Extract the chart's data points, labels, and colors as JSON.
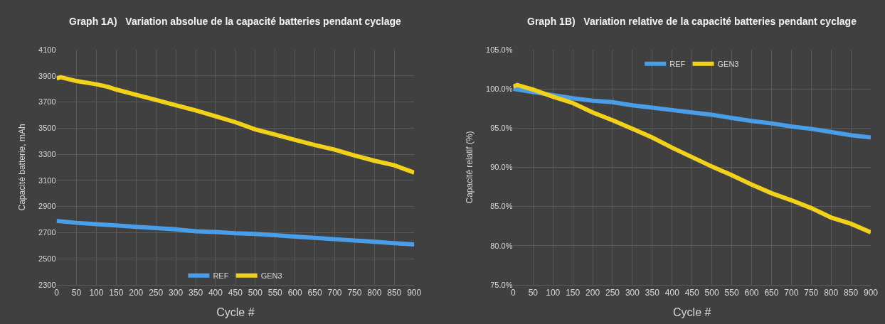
{
  "chart_data": [
    {
      "type": "line",
      "title": "Graph 1A)   Variation absolue de la capacité batteries pendant cyclage",
      "xlabel": "Cycle #",
      "ylabel": "Capacité batterie, mAh",
      "xlim": [
        0,
        900
      ],
      "xticks": [
        0,
        50,
        100,
        150,
        200,
        250,
        300,
        350,
        400,
        450,
        500,
        550,
        600,
        650,
        700,
        750,
        800,
        850,
        900
      ],
      "ylim": [
        2300,
        4100
      ],
      "yticks": [
        2300,
        2500,
        2700,
        2900,
        3100,
        3300,
        3500,
        3700,
        3900,
        4100
      ],
      "grid": true,
      "legend": "bottom",
      "line_style": "solid",
      "series": [
        {
          "name": "REF",
          "color": "#4a9ee8",
          "x": [
            0,
            50,
            100,
            150,
            200,
            250,
            300,
            350,
            400,
            450,
            500,
            550,
            600,
            650,
            700,
            750,
            800,
            850,
            900
          ],
          "values": [
            2790,
            2775,
            2765,
            2755,
            2745,
            2735,
            2725,
            2710,
            2705,
            2695,
            2690,
            2680,
            2670,
            2660,
            2650,
            2640,
            2630,
            2620,
            2610
          ]
        },
        {
          "name": "GEN3",
          "color": "#f2d11b",
          "x": [
            0,
            10,
            50,
            100,
            130,
            150,
            200,
            250,
            300,
            350,
            400,
            450,
            500,
            550,
            600,
            650,
            700,
            750,
            800,
            850,
            900
          ],
          "values": [
            3880,
            3890,
            3860,
            3835,
            3815,
            3795,
            3755,
            3715,
            3675,
            3635,
            3590,
            3545,
            3490,
            3450,
            3410,
            3370,
            3335,
            3290,
            3250,
            3215,
            3160
          ]
        }
      ]
    },
    {
      "type": "line",
      "title": "Graph 1B)   Variation relative de la capacité batteries pendant cyclage",
      "xlabel": "Cycle #",
      "ylabel": "Capacité relatif (%)",
      "xlim": [
        0,
        900
      ],
      "xticks": [
        0,
        50,
        100,
        150,
        200,
        250,
        300,
        350,
        400,
        450,
        500,
        550,
        600,
        650,
        700,
        750,
        800,
        850,
        900
      ],
      "ylim": [
        75,
        105
      ],
      "yticks": [
        {
          "value": 75,
          "label": "75.0%"
        },
        {
          "value": 80,
          "label": "80.0%"
        },
        {
          "value": 85,
          "label": "85.0%"
        },
        {
          "value": 90,
          "label": "90.0%"
        },
        {
          "value": 95,
          "label": "95.0%"
        },
        {
          "value": 100,
          "label": "100.0%"
        },
        {
          "value": 105,
          "label": "105.0%"
        }
      ],
      "grid": true,
      "legend": "top",
      "line_style": "solid",
      "series": [
        {
          "name": "REF",
          "color": "#4a9ee8",
          "x": [
            0,
            50,
            100,
            150,
            200,
            250,
            300,
            350,
            400,
            450,
            500,
            550,
            600,
            650,
            700,
            750,
            800,
            850,
            900
          ],
          "values": [
            100.0,
            99.6,
            99.2,
            98.8,
            98.5,
            98.3,
            97.9,
            97.6,
            97.3,
            97.0,
            96.7,
            96.3,
            95.9,
            95.6,
            95.2,
            94.9,
            94.5,
            94.1,
            93.8
          ]
        },
        {
          "name": "GEN3",
          "color": "#f2d11b",
          "x": [
            0,
            10,
            50,
            100,
            150,
            200,
            250,
            300,
            350,
            400,
            450,
            500,
            550,
            600,
            650,
            700,
            750,
            800,
            850,
            900
          ],
          "values": [
            100.3,
            100.5,
            99.9,
            99.0,
            98.2,
            97.0,
            96.0,
            94.9,
            93.8,
            92.5,
            91.3,
            90.1,
            89.0,
            87.8,
            86.7,
            85.8,
            84.8,
            83.6,
            82.8,
            81.7
          ]
        }
      ]
    }
  ]
}
